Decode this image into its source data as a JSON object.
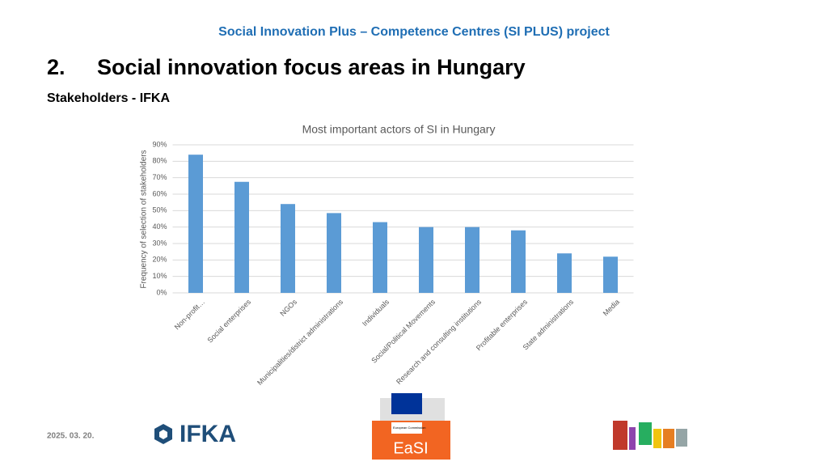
{
  "header": {
    "project": "Social Innovation Plus – Competence Centres (SI PLUS) project",
    "number": "2.",
    "heading": "Social innovation focus areas in Hungary",
    "subheading": "Stakeholders - IFKA"
  },
  "footer": {
    "date": "2025. 03. 20.",
    "ifka": "IFKA",
    "ec": "European Commission",
    "easi": "EaSI"
  },
  "chart_data": {
    "type": "bar",
    "title": "Most important actors of SI in Hungary",
    "y_label": "Frequency of selection of stakeholders",
    "categories": [
      "Non-profit…",
      "Social enterprises",
      "NGOs",
      "Municipalities/district administrations",
      "Individuals",
      "Social/Political Movements",
      "Research and consulting institutions",
      "Profitable enterprises",
      "State administrations",
      "Media"
    ],
    "values": [
      84,
      67.5,
      54,
      48.5,
      43,
      40,
      40,
      38,
      24,
      22
    ],
    "color": "#5b9bd5",
    "ylim": [
      0,
      90
    ],
    "yticks": [
      {
        "value": 0,
        "label": "0%"
      },
      {
        "value": 10,
        "label": "10%"
      },
      {
        "value": 20,
        "label": "20%"
      },
      {
        "value": 30,
        "label": "30%"
      },
      {
        "value": 40,
        "label": "40%"
      },
      {
        "value": 50,
        "label": "50%"
      },
      {
        "value": 60,
        "label": "60%"
      },
      {
        "value": 70,
        "label": "70%"
      },
      {
        "value": 80,
        "label": "80%"
      },
      {
        "value": 90,
        "label": "90%"
      }
    ],
    "grid": true
  }
}
